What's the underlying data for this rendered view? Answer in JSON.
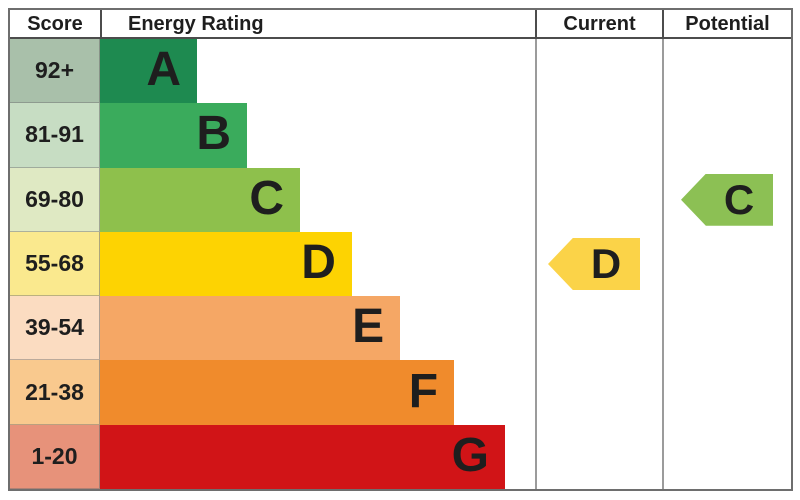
{
  "header": {
    "score": "Score",
    "energy_rating": "Energy Rating",
    "current": "Current",
    "potential": "Potential"
  },
  "chart_data": {
    "type": "bar",
    "kind": "epc-energy-rating-chart",
    "columns": [
      "Score",
      "Energy Rating",
      "Current",
      "Potential"
    ],
    "bands": [
      {
        "letter": "A",
        "score_range": "92+",
        "bar_color": "#1e8a50",
        "score_bg": "#a9c0aa",
        "bar_width_pct": 22.3
      },
      {
        "letter": "B",
        "score_range": "81-91",
        "bar_color": "#3aab5c",
        "score_bg": "#c7ddc3",
        "bar_width_pct": 33.8
      },
      {
        "letter": "C",
        "score_range": "69-80",
        "bar_color": "#8ec04c",
        "score_bg": "#dfe9c3",
        "bar_width_pct": 46.0
      },
      {
        "letter": "D",
        "score_range": "55-68",
        "bar_color": "#fdd302",
        "score_bg": "#fae98e",
        "bar_width_pct": 57.9
      },
      {
        "letter": "E",
        "score_range": "39-54",
        "bar_color": "#f5a765",
        "score_bg": "#fbdcc1",
        "bar_width_pct": 69.0
      },
      {
        "letter": "F",
        "score_range": "21-38",
        "bar_color": "#f08b2c",
        "score_bg": "#f9c98e",
        "bar_width_pct": 81.4
      },
      {
        "letter": "G",
        "score_range": "1-20",
        "bar_color": "#d11417",
        "score_bg": "#e7927a",
        "bar_width_pct": 93.1
      }
    ],
    "current_rating": {
      "band": "D",
      "row_index": 3,
      "color": "#fbd348"
    },
    "potential_rating": {
      "band": "C",
      "row_index": 2,
      "color": "#8cc054"
    }
  }
}
